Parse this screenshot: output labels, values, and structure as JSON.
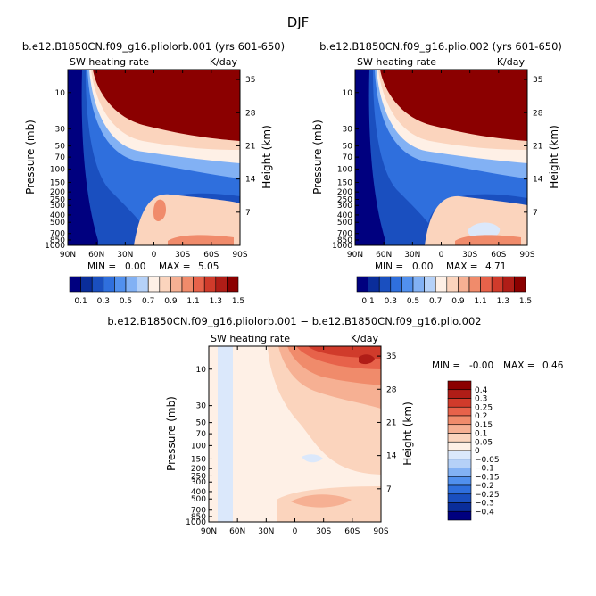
{
  "figure": {
    "season": "DJF"
  },
  "chart_data": [
    {
      "type": "heatmap",
      "title": "b.e12.B1850CN.f09_g16.pliolorb.001 (yrs 601-650)",
      "subtitle_left": "SW heating rate",
      "subtitle_right": "K/day",
      "xlabel": "",
      "ylabel": "Pressure (mb)",
      "ylabel_right": "Height (km)",
      "x_ticks": [
        "90N",
        "60N",
        "30N",
        "0",
        "30S",
        "60S",
        "90S"
      ],
      "y_ticks": [
        "10",
        "30",
        "50",
        "70",
        "100",
        "150",
        "200",
        "250",
        "300",
        "400",
        "500",
        "700",
        "850",
        "1000"
      ],
      "y_ticks_right": [
        "35",
        "28",
        "21",
        "14",
        "7"
      ],
      "stats": {
        "min_label": "MIN =",
        "min": "0.00",
        "max_label": "MAX =",
        "max": "5.05"
      },
      "colorbar": {
        "orientation": "horizontal",
        "labels": [
          "0.1",
          "0.3",
          "0.5",
          "0.7",
          "0.9",
          "1.1",
          "1.3",
          "1.5"
        ]
      }
    },
    {
      "type": "heatmap",
      "title": "b.e12.B1850CN.f09_g16.plio.002 (yrs 601-650)",
      "subtitle_left": "SW heating rate",
      "subtitle_right": "K/day",
      "xlabel": "",
      "ylabel": "Pressure (mb)",
      "ylabel_right": "Height (km)",
      "x_ticks": [
        "90N",
        "60N",
        "30N",
        "0",
        "30S",
        "60S",
        "90S"
      ],
      "y_ticks": [
        "10",
        "30",
        "50",
        "70",
        "100",
        "150",
        "200",
        "250",
        "300",
        "400",
        "500",
        "700",
        "850",
        "1000"
      ],
      "y_ticks_right": [
        "35",
        "28",
        "21",
        "14",
        "7"
      ],
      "stats": {
        "min_label": "MIN =",
        "min": "0.00",
        "max_label": "MAX =",
        "max": "4.71"
      },
      "colorbar": {
        "orientation": "horizontal",
        "labels": [
          "0.1",
          "0.3",
          "0.5",
          "0.7",
          "0.9",
          "1.1",
          "1.3",
          "1.5"
        ]
      }
    },
    {
      "type": "heatmap",
      "title": "b.e12.B1850CN.f09_g16.pliolorb.001 − b.e12.B1850CN.f09_g16.plio.002",
      "subtitle_left": "SW heating rate",
      "subtitle_right": "K/day",
      "xlabel": "",
      "ylabel": "Pressure (mb)",
      "ylabel_right": "Height (km)",
      "x_ticks": [
        "90N",
        "60N",
        "30N",
        "0",
        "30S",
        "60S",
        "90S"
      ],
      "y_ticks": [
        "10",
        "30",
        "50",
        "70",
        "100",
        "150",
        "200",
        "250",
        "300",
        "400",
        "500",
        "700",
        "850",
        "1000"
      ],
      "y_ticks_right": [
        "35",
        "28",
        "21",
        "14",
        "7"
      ],
      "stats": {
        "min_label": "MIN =",
        "min": "-0.00",
        "max_label": "MAX =",
        "max": "0.46"
      },
      "colorbar": {
        "orientation": "vertical",
        "labels": [
          "0.4",
          "0.3",
          "0.25",
          "0.2",
          "0.15",
          "0.1",
          "0.05",
          "0",
          "−0.05",
          "−0.1",
          "−0.15",
          "−0.2",
          "−0.25",
          "−0.3",
          "−0.4"
        ]
      }
    }
  ],
  "palettes": {
    "abs": [
      "#00007f",
      "#0a2d9a",
      "#1a4fbf",
      "#2f6fdd",
      "#5190ee",
      "#82b1f4",
      "#b5d1f8",
      "#fef0e6",
      "#fbd4bd",
      "#f6b093",
      "#f08b6b",
      "#e7624a",
      "#d03b2b",
      "#b01d17",
      "#8b0000"
    ],
    "diff": [
      "#00007f",
      "#0a2d9a",
      "#1a4fbf",
      "#2f6fdd",
      "#5190ee",
      "#82b1f4",
      "#b5d1f8",
      "#dbe8fb",
      "#fef0e6",
      "#fbd4bd",
      "#f6b093",
      "#f08b6b",
      "#e7624a",
      "#d03b2b",
      "#b01d17",
      "#8b0000"
    ]
  }
}
